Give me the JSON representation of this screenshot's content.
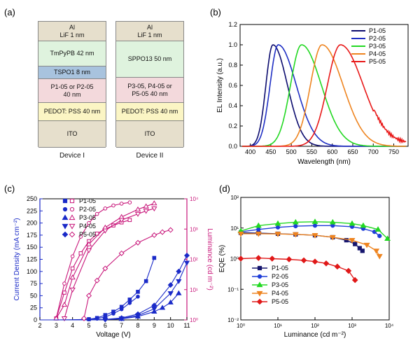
{
  "panels": {
    "a": "(a)",
    "b": "(b)",
    "c": "(c)",
    "d": "(d)"
  },
  "device_stacks": [
    {
      "name": "Device I",
      "layers": [
        {
          "label": "Al\nLiF 1 nm",
          "color": "#e6dfcc"
        },
        {
          "label": "TmPyPB 42 nm",
          "color": "#dff3de"
        },
        {
          "label": "TSPO1 8 nm",
          "color": "#a8c3de"
        },
        {
          "label": "P1-05 or P2-05\n40 nm",
          "color": "#f3d9dc"
        },
        {
          "label": "PEDOT: PSS 40 nm",
          "color": "#fbf5c4"
        },
        {
          "label": "ITO",
          "color": "#e6dfcc"
        }
      ]
    },
    {
      "name": "Device II",
      "layers": [
        {
          "label": "Al\nLiF 1 nm",
          "color": "#e6dfcc"
        },
        {
          "label": "SPPO13 50 nm",
          "color": "#dff3de"
        },
        {
          "label": "P3-05, P4-05 or\nP5-05 40 nm",
          "color": "#f3d9dc"
        },
        {
          "label": "PEDOT: PSS 40 nm",
          "color": "#fbf5c4"
        },
        {
          "label": "ITO",
          "color": "#e6dfcc"
        }
      ]
    }
  ],
  "chart_data": [
    {
      "type": "line",
      "panel": "(b)",
      "xlabel": "Wavelength (nm)",
      "ylabel": "EL Intensity (a.u.)",
      "xlim": [
        375,
        785
      ],
      "ylim": [
        0,
        1.2
      ],
      "xticks": [
        "400",
        "450",
        "500",
        "550",
        "600",
        "650",
        "700",
        "750"
      ],
      "yticks": [
        "0.0",
        "0.2",
        "0.4",
        "0.6",
        "0.8",
        "1.0",
        "1.2"
      ],
      "legend": "top-right",
      "series": [
        {
          "name": "P1-05",
          "color": "#0b0b6e",
          "peak": 455,
          "left_width": 24,
          "right_width": 50
        },
        {
          "name": "P2-05",
          "color": "#1f2fc4",
          "peak": 468,
          "left_width": 28,
          "right_width": 62
        },
        {
          "name": "P3-05",
          "color": "#22d822",
          "peak": 525,
          "left_width": 38,
          "right_width": 68
        },
        {
          "name": "P4-05",
          "color": "#ee8420",
          "peak": 575,
          "left_width": 40,
          "right_width": 72
        },
        {
          "name": "P5-05",
          "color": "#e81818",
          "peak": 620,
          "left_width": 45,
          "right_width": 78
        }
      ]
    },
    {
      "type": "line",
      "panel": "(c)",
      "xlabel": "Voltage (V)",
      "ylabel": "Current Density (mA cm⁻²)",
      "y2label": "Luminance (cd m⁻²)",
      "xlim": [
        2,
        11
      ],
      "ylim": [
        0,
        250
      ],
      "y2lim_log": [
        0,
        4
      ],
      "xticks": [
        "2",
        "3",
        "4",
        "5",
        "6",
        "7",
        "8",
        "9",
        "10",
        "11"
      ],
      "yticks": [
        "0",
        "25",
        "50",
        "75",
        "100",
        "125",
        "150",
        "175",
        "200",
        "225",
        "250"
      ],
      "y2ticks": [
        "10⁰",
        "10¹",
        "10²",
        "10³",
        "10⁴"
      ],
      "legend": "top-left",
      "series": [
        {
          "name": "P1-05",
          "marker": "square",
          "color": "#1a2ac8",
          "luminance_color": "#c8167a",
          "current": [
            [
              2,
              0
            ],
            [
              3,
              0
            ],
            [
              4,
              0.3
            ],
            [
              5,
              1.5
            ],
            [
              5.5,
              4
            ],
            [
              6,
              10
            ],
            [
              6.5,
              17
            ],
            [
              7,
              27
            ],
            [
              7.5,
              42
            ],
            [
              8,
              58
            ],
            [
              8.5,
              80
            ],
            [
              9,
              128
            ]
          ],
          "luminance": [
            [
              3,
              0.05
            ],
            [
              3.5,
              0.9
            ],
            [
              4,
              1.7
            ],
            [
              4.5,
              2.2
            ],
            [
              5,
              2.6
            ],
            [
              5.5,
              2.85
            ],
            [
              6,
              3.0
            ],
            [
              6.5,
              3.12
            ],
            [
              7,
              3.22
            ],
            [
              7.5,
              3.3
            ]
          ]
        },
        {
          "name": "P2-05",
          "marker": "circle",
          "color": "#1a2ac8",
          "luminance_color": "#c8167a",
          "current": [
            [
              2,
              0
            ],
            [
              3,
              0
            ],
            [
              4,
              0.3
            ],
            [
              5,
              1
            ],
            [
              5.5,
              2.5
            ],
            [
              6,
              6
            ],
            [
              6.5,
              13
            ],
            [
              7,
              22
            ],
            [
              7.5,
              35
            ],
            [
              8,
              48
            ]
          ],
          "luminance": [
            [
              3,
              0.05
            ],
            [
              3.5,
              1.2
            ],
            [
              4,
              2.1
            ],
            [
              4.5,
              2.75
            ],
            [
              5,
              3.2
            ],
            [
              5.5,
              3.5
            ],
            [
              6,
              3.68
            ],
            [
              6.5,
              3.78
            ],
            [
              7,
              3.84
            ],
            [
              7.5,
              3.88
            ]
          ]
        },
        {
          "name": "P3-05",
          "marker": "triangle-up",
          "color": "#1a2ac8",
          "luminance_color": "#c8167a",
          "current": [
            [
              2,
              0
            ],
            [
              4,
              0
            ],
            [
              6,
              0.5
            ],
            [
              7,
              2
            ],
            [
              8,
              7
            ],
            [
              9,
              17
            ],
            [
              9.5,
              25
            ],
            [
              10,
              36
            ],
            [
              10.5,
              55
            ]
          ],
          "luminance": [
            [
              3,
              0.05
            ],
            [
              3.5,
              0.5
            ],
            [
              4,
              1.4
            ],
            [
              5,
              2.5
            ],
            [
              6,
              3.05
            ],
            [
              7,
              3.4
            ],
            [
              8,
              3.65
            ],
            [
              8.5,
              3.75
            ],
            [
              9,
              3.85
            ]
          ]
        },
        {
          "name": "P4-05",
          "marker": "triangle-down",
          "color": "#1a2ac8",
          "luminance_color": "#c8167a",
          "current": [
            [
              2,
              0
            ],
            [
              5,
              0
            ],
            [
              6,
              0.8
            ],
            [
              7,
              3
            ],
            [
              8,
              9
            ],
            [
              9,
              23
            ],
            [
              10,
              55
            ],
            [
              10.5,
              80
            ],
            [
              11,
              118
            ]
          ],
          "luminance": [
            [
              3.5,
              0.05
            ],
            [
              4,
              1.0
            ],
            [
              5,
              2.3
            ],
            [
              6,
              2.95
            ],
            [
              7,
              3.3
            ],
            [
              8,
              3.5
            ],
            [
              8.5,
              3.6
            ],
            [
              9,
              3.68
            ]
          ]
        },
        {
          "name": "P5-05",
          "marker": "diamond",
          "color": "#1a2ac8",
          "luminance_color": "#c8167a",
          "current": [
            [
              2,
              0
            ],
            [
              5,
              0
            ],
            [
              6,
              1
            ],
            [
              7,
              4
            ],
            [
              8,
              12
            ],
            [
              9,
              30
            ],
            [
              10,
              72
            ],
            [
              10.5,
              100
            ],
            [
              11,
              133
            ]
          ],
          "luminance": [
            [
              4.7,
              0.05
            ],
            [
              5,
              0.8
            ],
            [
              5.5,
              1.3
            ],
            [
              6,
              1.7
            ],
            [
              7,
              2.2
            ],
            [
              8,
              2.55
            ],
            [
              9,
              2.8
            ],
            [
              9.5,
              2.9
            ],
            [
              10,
              2.97
            ]
          ]
        }
      ]
    },
    {
      "type": "line",
      "panel": "(d)",
      "xlabel": "Luminance (cd m⁻²)",
      "ylabel": "EQE (%)",
      "xscale": "log",
      "yscale": "log",
      "xlim": [
        1,
        10000
      ],
      "ylim": [
        0.01,
        100
      ],
      "xticks": [
        "10⁰",
        "10¹",
        "10²",
        "10³",
        "10⁴"
      ],
      "yticks": [
        "10⁻²",
        "10⁻¹",
        "10⁰",
        "10¹",
        "10²"
      ],
      "legend": "bottom-left",
      "series": [
        {
          "name": "P1-05",
          "marker": "square",
          "color": "#16166e",
          "points": [
            [
              1,
              7
            ],
            [
              3,
              6.8
            ],
            [
              10,
              6.5
            ],
            [
              30,
              6.2
            ],
            [
              100,
              5.8
            ],
            [
              300,
              5
            ],
            [
              700,
              4
            ],
            [
              1200,
              3
            ],
            [
              1600,
              2.2
            ],
            [
              1900,
              1.8
            ]
          ]
        },
        {
          "name": "P2-05",
          "marker": "circle",
          "color": "#1f3ed8",
          "points": [
            [
              1,
              7.5
            ],
            [
              3,
              9
            ],
            [
              10,
              10.5
            ],
            [
              30,
              11.5
            ],
            [
              100,
              12
            ],
            [
              300,
              12
            ],
            [
              1000,
              11
            ],
            [
              2000,
              9.5
            ],
            [
              4000,
              7.5
            ],
            [
              5500,
              5.5
            ]
          ]
        },
        {
          "name": "P3-05",
          "marker": "triangle-up",
          "color": "#22d822",
          "points": [
            [
              1,
              8
            ],
            [
              3,
              12
            ],
            [
              10,
              14
            ],
            [
              30,
              15.5
            ],
            [
              100,
              16
            ],
            [
              300,
              15.5
            ],
            [
              1000,
              14
            ],
            [
              2000,
              12
            ],
            [
              5000,
              9
            ],
            [
              9000,
              4.5
            ]
          ]
        },
        {
          "name": "P4-05",
          "marker": "triangle-down",
          "color": "#ee8420",
          "points": [
            [
              1,
              6.5
            ],
            [
              3,
              6.5
            ],
            [
              10,
              6.4
            ],
            [
              30,
              6.2
            ],
            [
              100,
              5.8
            ],
            [
              300,
              5
            ],
            [
              1000,
              4
            ],
            [
              2500,
              2.8
            ],
            [
              4500,
              1.8
            ],
            [
              5500,
              1.2
            ]
          ]
        },
        {
          "name": "P5-05",
          "marker": "diamond",
          "color": "#e01818",
          "points": [
            [
              1,
              1
            ],
            [
              3,
              1.05
            ],
            [
              7,
              1.0
            ],
            [
              20,
              0.95
            ],
            [
              50,
              0.88
            ],
            [
              100,
              0.8
            ],
            [
              200,
              0.7
            ],
            [
              400,
              0.55
            ],
            [
              800,
              0.4
            ],
            [
              1200,
              0.2
            ]
          ]
        }
      ]
    }
  ]
}
